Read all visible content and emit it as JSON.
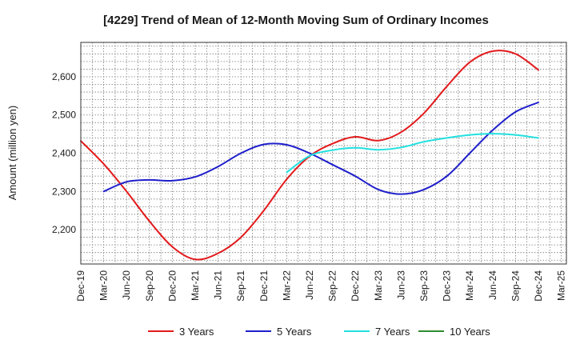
{
  "chart_data": {
    "type": "line",
    "title": "[4229]  Trend of Mean of 12-Month Moving Sum of Ordinary Incomes",
    "xlabel": "",
    "ylabel": "Amount (million yen)",
    "ylim": [
      2110,
      2690
    ],
    "yticks": [
      2200,
      2300,
      2400,
      2500,
      2600
    ],
    "ytick_labels": [
      "2,200",
      "2,300",
      "2,400",
      "2,500",
      "2,600"
    ],
    "categories": [
      "Dec-19",
      "Mar-20",
      "Jun-20",
      "Sep-20",
      "Dec-20",
      "Mar-21",
      "Jun-21",
      "Sep-21",
      "Dec-21",
      "Mar-22",
      "Jun-22",
      "Sep-22",
      "Dec-22",
      "Mar-23",
      "Jun-23",
      "Sep-23",
      "Dec-23",
      "Mar-24",
      "Jun-24",
      "Sep-24",
      "Dec-24",
      "Mar-25"
    ],
    "grid": true,
    "legend_position": "bottom",
    "series": [
      {
        "name": "3 Years",
        "color": "#e31a1c",
        "values": [
          2432,
          2372,
          2300,
          2222,
          2155,
          2122,
          2138,
          2180,
          2250,
          2332,
          2392,
          2425,
          2443,
          2433,
          2455,
          2505,
          2575,
          2638,
          2667,
          2660,
          2618,
          null
        ]
      },
      {
        "name": "5 Years",
        "color": "#1f1fcc",
        "values": [
          null,
          2300,
          2325,
          2330,
          2328,
          2338,
          2365,
          2400,
          2423,
          2422,
          2400,
          2370,
          2340,
          2305,
          2293,
          2305,
          2340,
          2400,
          2460,
          2508,
          2533,
          null
        ]
      },
      {
        "name": "7 Years",
        "color": "#22e0e0",
        "values": [
          null,
          null,
          null,
          null,
          null,
          null,
          null,
          null,
          null,
          2350,
          2393,
          2408,
          2414,
          2409,
          2415,
          2430,
          2440,
          2448,
          2451,
          2448,
          2440,
          null
        ]
      },
      {
        "name": "10 Years",
        "color": "#2e8b2e",
        "values": [
          null,
          null,
          null,
          null,
          null,
          null,
          null,
          null,
          null,
          null,
          null,
          null,
          null,
          null,
          null,
          null,
          null,
          null,
          null,
          null,
          null,
          null
        ]
      }
    ]
  }
}
